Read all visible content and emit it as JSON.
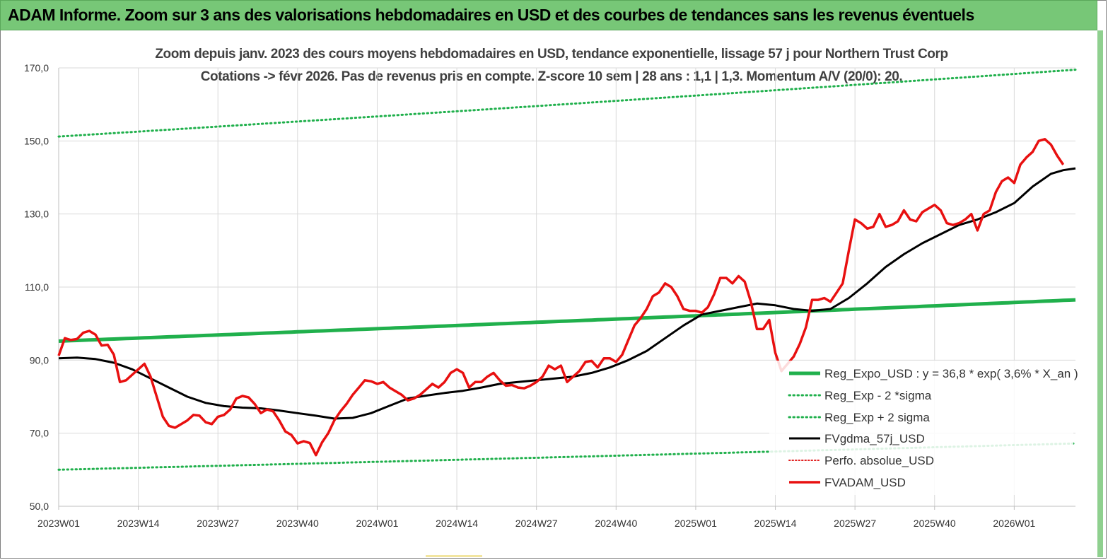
{
  "header": {
    "title": "ADAM Informe. Zoom sur 3 ans des valorisations hebdomadaires en USD et des courbes de tendances sans les revenus éventuels"
  },
  "chart_data": {
    "type": "line",
    "title_line1": "Zoom depuis janv. 2023 des cours moyens hebdomadaires en USD, tendance exponentielle, lissage 57 j pour Northern Trust Corp",
    "title_line2": "Cotations -> févr 2026.  Pas de revenus pris en compte. Z-score 10 sem  | 28 ans : 1,1  | 1,3. Momentum A/V (20/0): 20.",
    "ylim": [
      50,
      170
    ],
    "y_ticks": [
      "50,0",
      "70,0",
      "90,0",
      "110,0",
      "130,0",
      "150,0",
      "170,0"
    ],
    "y_tick_values": [
      50,
      70,
      90,
      110,
      130,
      150,
      170
    ],
    "x_ticks": [
      "2023W01",
      "2023W14",
      "2023W27",
      "2023W40",
      "2024W01",
      "2024W14",
      "2024W27",
      "2024W40",
      "2025W01",
      "2025W14",
      "2025W27",
      "2025W40",
      "2026W01"
    ],
    "x_tick_weeks": [
      0,
      13,
      26,
      39,
      52,
      65,
      78,
      91,
      104,
      117,
      130,
      143,
      156
    ],
    "n_weeks": 167,
    "legend": {
      "placement": "bottom-right"
    },
    "colors": {
      "reg_expo": "#20b04c",
      "sigma": "#20b04c",
      "fvgdma": "#000000",
      "perfo": "#e02020",
      "fvadam": "#e81010"
    },
    "series": [
      {
        "name": "Reg_Expo_USD : y = 36,8 * exp( 3,6% *  X_an )",
        "style": "thick-solid",
        "start": 95.2,
        "end": 106.5
      },
      {
        "name": "Reg_Exp - 2 *sigma",
        "style": "dotted",
        "start": 60.0,
        "end": 67.2
      },
      {
        "name": "Reg_Exp + 2 sigma",
        "style": "dotted",
        "start": 151.2,
        "end": 169.5
      },
      {
        "name": "FVgdma_57j_USD",
        "style": "solid",
        "points": [
          [
            0,
            90.5
          ],
          [
            3,
            90.7
          ],
          [
            6,
            90.3
          ],
          [
            9,
            89.3
          ],
          [
            12,
            87.5
          ],
          [
            15,
            85.0
          ],
          [
            18,
            82.5
          ],
          [
            21,
            80.0
          ],
          [
            24,
            78.3
          ],
          [
            27,
            77.4
          ],
          [
            30,
            77.0
          ],
          [
            33,
            76.8
          ],
          [
            36,
            76.2
          ],
          [
            39,
            75.5
          ],
          [
            42,
            74.8
          ],
          [
            45,
            74.0
          ],
          [
            48,
            74.2
          ],
          [
            51,
            75.5
          ],
          [
            54,
            77.5
          ],
          [
            57,
            79.5
          ],
          [
            60,
            80.3
          ],
          [
            63,
            81.0
          ],
          [
            66,
            81.6
          ],
          [
            69,
            82.5
          ],
          [
            72,
            83.5
          ],
          [
            75,
            84.0
          ],
          [
            78,
            84.5
          ],
          [
            81,
            85.0
          ],
          [
            84,
            85.5
          ],
          [
            87,
            86.5
          ],
          [
            90,
            88.0
          ],
          [
            93,
            90.0
          ],
          [
            96,
            92.5
          ],
          [
            99,
            96.0
          ],
          [
            102,
            99.5
          ],
          [
            105,
            102.5
          ],
          [
            108,
            103.5
          ],
          [
            111,
            104.5
          ],
          [
            114,
            105.5
          ],
          [
            117,
            105.0
          ],
          [
            120,
            104.0
          ],
          [
            123,
            103.5
          ],
          [
            126,
            104.0
          ],
          [
            129,
            107.0
          ],
          [
            132,
            111.0
          ],
          [
            135,
            115.5
          ],
          [
            138,
            119.0
          ],
          [
            141,
            122.0
          ],
          [
            144,
            124.5
          ],
          [
            147,
            127.0
          ],
          [
            150,
            128.5
          ],
          [
            153,
            130.5
          ],
          [
            156,
            133.0
          ],
          [
            159,
            137.5
          ],
          [
            162,
            141.0
          ],
          [
            164,
            142.0
          ],
          [
            166,
            142.5
          ]
        ]
      },
      {
        "name": "Perfo. absolue_USD",
        "style": "dotted-red"
      },
      {
        "name": "FVADAM_USD",
        "style": "thick-solid-red",
        "points": [
          [
            0,
            91.2
          ],
          [
            1,
            96
          ],
          [
            2,
            95.5
          ],
          [
            3,
            95.8
          ],
          [
            4,
            97.5
          ],
          [
            5,
            98
          ],
          [
            6,
            97
          ],
          [
            7,
            94
          ],
          [
            8,
            94.2
          ],
          [
            9,
            91.5
          ],
          [
            10,
            84
          ],
          [
            11,
            84.5
          ],
          [
            12,
            86
          ],
          [
            13,
            87.5
          ],
          [
            14,
            89
          ],
          [
            15,
            85.5
          ],
          [
            16,
            80
          ],
          [
            17,
            74.5
          ],
          [
            18,
            72
          ],
          [
            19,
            71.5
          ],
          [
            20,
            72.5
          ],
          [
            21,
            73.5
          ],
          [
            22,
            75
          ],
          [
            23,
            74.8
          ],
          [
            24,
            73
          ],
          [
            25,
            72.5
          ],
          [
            26,
            74.5
          ],
          [
            27,
            75
          ],
          [
            28,
            76.5
          ],
          [
            29,
            79.5
          ],
          [
            30,
            80.2
          ],
          [
            31,
            79.8
          ],
          [
            32,
            78
          ],
          [
            33,
            75.5
          ],
          [
            34,
            76.5
          ],
          [
            35,
            76
          ],
          [
            36,
            73.5
          ],
          [
            37,
            70.5
          ],
          [
            38,
            69.5
          ],
          [
            39,
            67.2
          ],
          [
            40,
            67.8
          ],
          [
            41,
            67.3
          ],
          [
            42,
            64
          ],
          [
            43,
            67.5
          ],
          [
            44,
            70
          ],
          [
            45,
            73.5
          ],
          [
            46,
            76
          ],
          [
            47,
            78
          ],
          [
            48,
            80.5
          ],
          [
            49,
            82.5
          ],
          [
            50,
            84.5
          ],
          [
            51,
            84.2
          ],
          [
            52,
            83.5
          ],
          [
            53,
            84
          ],
          [
            54,
            82.5
          ],
          [
            55,
            81.5
          ],
          [
            56,
            80.5
          ],
          [
            57,
            79
          ],
          [
            58,
            79.5
          ],
          [
            59,
            80.5
          ],
          [
            60,
            82
          ],
          [
            61,
            83.5
          ],
          [
            62,
            82.5
          ],
          [
            63,
            84
          ],
          [
            64,
            86.5
          ],
          [
            65,
            87.5
          ],
          [
            66,
            86.5
          ],
          [
            67,
            82.5
          ],
          [
            68,
            84
          ],
          [
            69,
            84
          ],
          [
            70,
            85.5
          ],
          [
            71,
            86.5
          ],
          [
            72,
            84.5
          ],
          [
            73,
            83
          ],
          [
            74,
            83.2
          ],
          [
            75,
            82.5
          ],
          [
            76,
            82.3
          ],
          [
            77,
            83
          ],
          [
            78,
            84
          ],
          [
            79,
            85.5
          ],
          [
            80,
            88.5
          ],
          [
            81,
            87.5
          ],
          [
            82,
            88.5
          ],
          [
            83,
            84
          ],
          [
            84,
            85.5
          ],
          [
            85,
            87
          ],
          [
            86,
            89.5
          ],
          [
            87,
            89.8
          ],
          [
            88,
            88
          ],
          [
            89,
            90.5
          ],
          [
            90,
            90.5
          ],
          [
            91,
            89.5
          ],
          [
            92,
            91.5
          ],
          [
            93,
            95.5
          ],
          [
            94,
            99.5
          ],
          [
            95,
            101.5
          ],
          [
            96,
            104
          ],
          [
            97,
            107.5
          ],
          [
            98,
            108.5
          ],
          [
            99,
            111
          ],
          [
            100,
            110
          ],
          [
            101,
            107.5
          ],
          [
            102,
            104
          ],
          [
            103,
            103.5
          ],
          [
            104,
            103.5
          ],
          [
            105,
            103
          ],
          [
            106,
            104.5
          ],
          [
            107,
            108
          ],
          [
            108,
            112.5
          ],
          [
            109,
            112.5
          ],
          [
            110,
            111
          ],
          [
            111,
            113
          ],
          [
            112,
            111.5
          ],
          [
            113,
            106
          ],
          [
            114,
            98.5
          ],
          [
            115,
            98.5
          ],
          [
            116,
            101
          ],
          [
            117,
            92
          ],
          [
            118,
            87
          ],
          [
            119,
            89
          ],
          [
            120,
            91
          ],
          [
            121,
            94.5
          ],
          [
            122,
            99
          ],
          [
            123,
            106.5
          ],
          [
            124,
            106.5
          ],
          [
            125,
            107
          ],
          [
            126,
            106
          ],
          [
            127,
            108.5
          ],
          [
            128,
            111
          ],
          [
            129,
            120
          ],
          [
            130,
            128.5
          ],
          [
            131,
            127.5
          ],
          [
            132,
            126
          ],
          [
            133,
            126.5
          ],
          [
            134,
            130
          ],
          [
            135,
            126.5
          ],
          [
            136,
            127
          ],
          [
            137,
            128
          ],
          [
            138,
            131
          ],
          [
            139,
            128.5
          ],
          [
            140,
            128
          ],
          [
            141,
            130.5
          ],
          [
            142,
            131.5
          ],
          [
            143,
            132.5
          ],
          [
            144,
            131
          ],
          [
            145,
            127.5
          ],
          [
            146,
            127
          ],
          [
            147,
            127.5
          ],
          [
            148,
            128.5
          ],
          [
            149,
            130
          ],
          [
            150,
            125.5
          ],
          [
            151,
            130
          ],
          [
            152,
            131
          ],
          [
            153,
            136
          ],
          [
            154,
            139
          ],
          [
            155,
            140
          ],
          [
            156,
            138.5
          ],
          [
            157,
            143.5
          ],
          [
            158,
            145.5
          ],
          [
            159,
            147
          ],
          [
            160,
            150
          ],
          [
            161,
            150.5
          ],
          [
            162,
            149
          ],
          [
            163,
            146
          ],
          [
            164,
            143.5
          ]
        ]
      }
    ]
  }
}
